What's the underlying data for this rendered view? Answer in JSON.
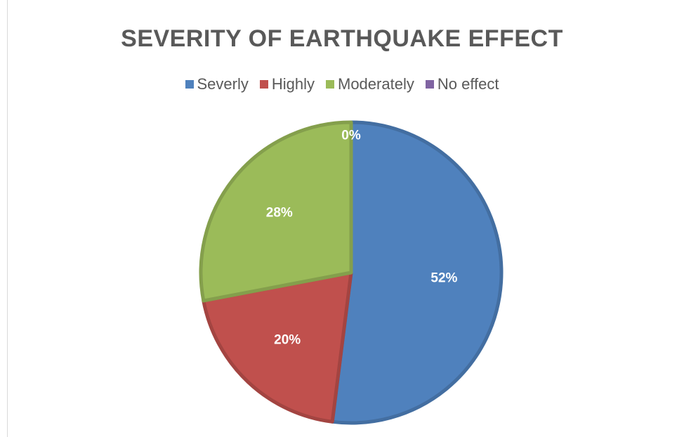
{
  "chart_data": {
    "type": "pie",
    "title": "SEVERITY OF EARTHQUAKE EFFECT",
    "legend_position": "top",
    "slices": [
      {
        "name": "Severly",
        "value": 52,
        "label": "52%",
        "color": "#4f81bd"
      },
      {
        "name": "Highly",
        "value": 20,
        "label": "20%",
        "color": "#c0504d"
      },
      {
        "name": "Moderately",
        "value": 28,
        "label": "28%",
        "color": "#9bbb59"
      },
      {
        "name": "No effect",
        "value": 0,
        "label": "0%",
        "color": "#8064a2"
      }
    ]
  }
}
